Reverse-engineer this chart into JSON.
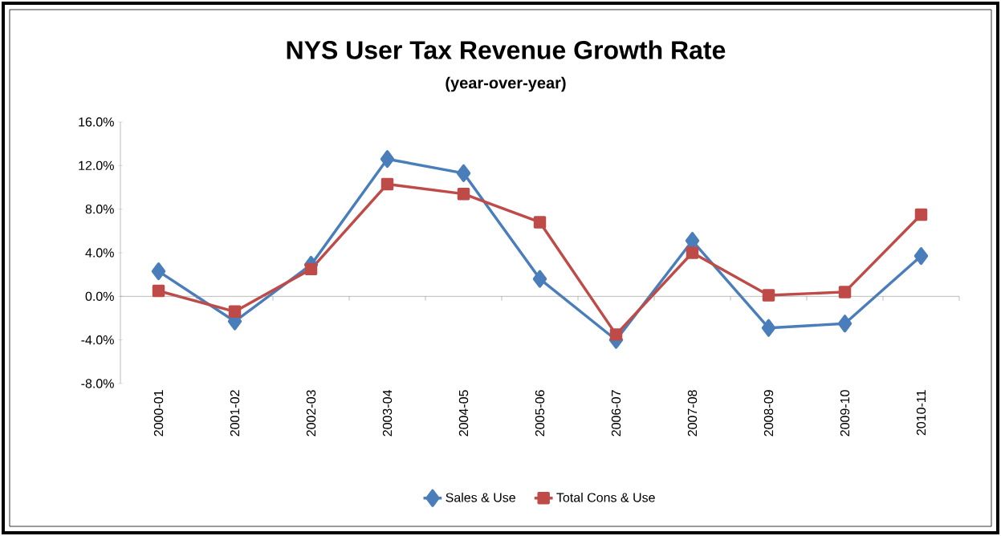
{
  "chart_data": {
    "type": "line",
    "title": "NYS User Tax Revenue Growth Rate",
    "subtitle": "(year-over-year)",
    "categories": [
      "2000-01",
      "2001-02",
      "2002-03",
      "2003-04",
      "2004-05",
      "2005-06",
      "2006-07",
      "2007-08",
      "2008-09",
      "2009-10",
      "2010-11"
    ],
    "series": [
      {
        "name": "Sales & Use",
        "color": "#4a7ebb",
        "marker": "diamond",
        "values": [
          2.3,
          -2.3,
          2.9,
          12.6,
          11.3,
          1.6,
          -4.0,
          5.1,
          -2.9,
          -2.5,
          3.7
        ]
      },
      {
        "name": "Total Cons & Use",
        "color": "#be4b48",
        "marker": "square",
        "values": [
          0.5,
          -1.4,
          2.5,
          10.3,
          9.4,
          6.8,
          -3.5,
          4.0,
          0.1,
          0.4,
          7.5
        ]
      }
    ],
    "ylim": [
      -8,
      16
    ],
    "yticks": [
      {
        "value": -8,
        "label": "-8.0%"
      },
      {
        "value": -4,
        "label": "-4.0%"
      },
      {
        "value": 0,
        "label": "0.0%"
      },
      {
        "value": 4,
        "label": "4.0%"
      },
      {
        "value": 8,
        "label": "8.0%"
      },
      {
        "value": 12,
        "label": "12.0%"
      },
      {
        "value": 16,
        "label": "16.0%"
      }
    ],
    "legend": "bottom",
    "line_style": "solid"
  }
}
